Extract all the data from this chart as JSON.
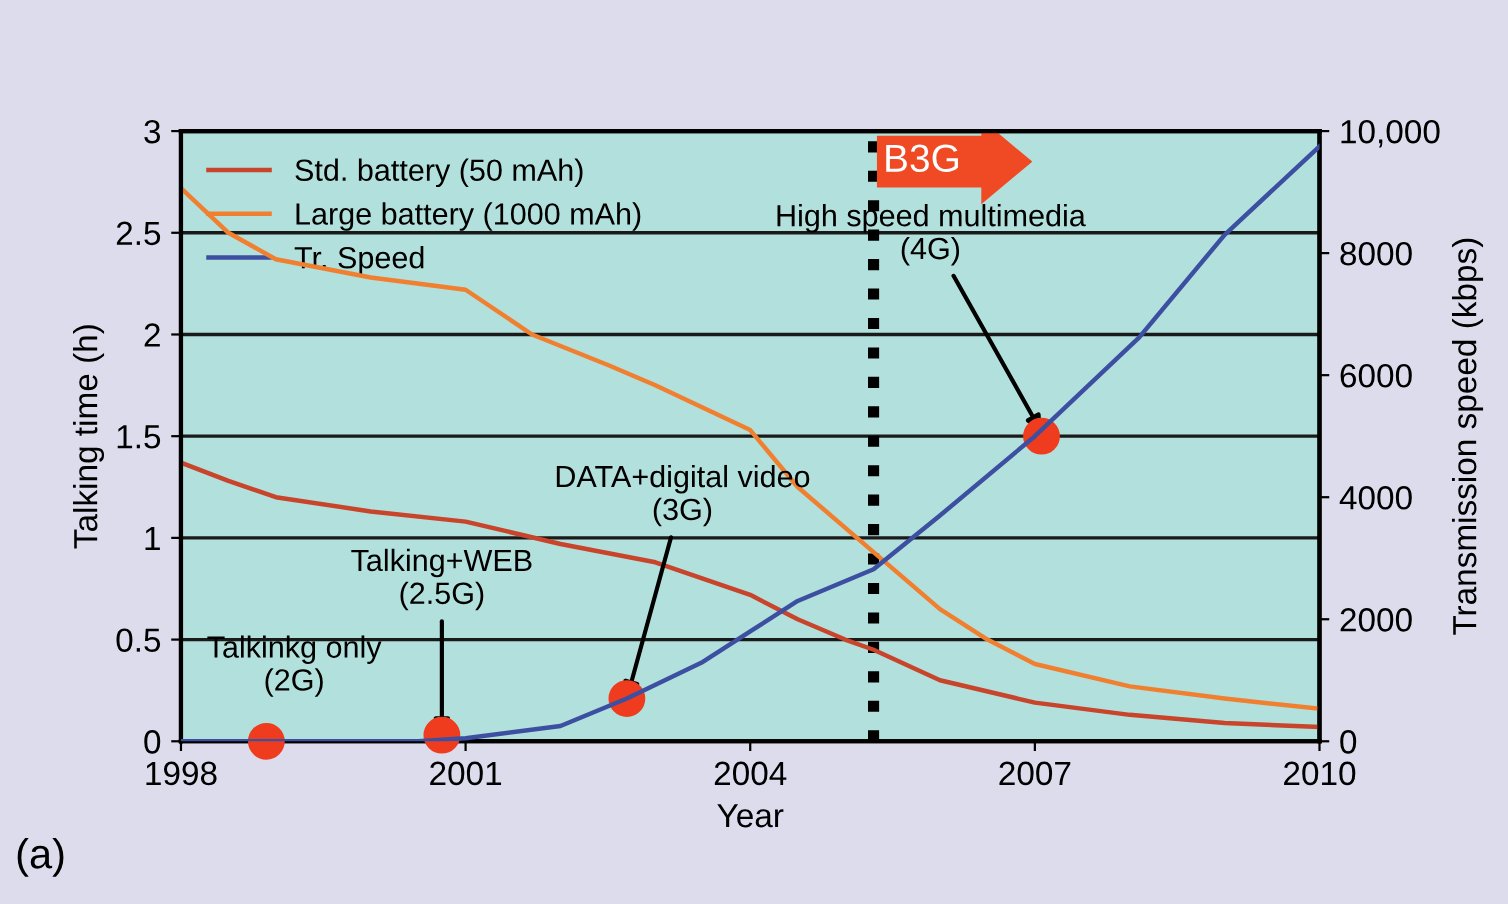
{
  "chart_data": {
    "type": "line",
    "xlabel": "Year",
    "ylabel": "Talking time (h)",
    "y2label": "Transmission speed (kbps)",
    "xlim": [
      1998,
      2010
    ],
    "xticks": [
      1998,
      2001,
      2004,
      2007,
      2010
    ],
    "ylim": [
      0,
      3
    ],
    "yticks": [
      0,
      0.5,
      1,
      1.5,
      2,
      2.5,
      3
    ],
    "y2lim": [
      0,
      10000
    ],
    "y2ticks": [
      0,
      2000,
      4000,
      6000,
      8000,
      {
        "value": 10000,
        "label": "10,000"
      }
    ],
    "grid": "y",
    "legend": "top left",
    "marker": "none",
    "line_style": "solid",
    "series": [
      {
        "name": "Std. battery (50 mAh)",
        "color": "#c8442a",
        "x": [
          1998,
          1998.5,
          1999,
          2000,
          2001,
          2002,
          2003,
          2004,
          2004.5,
          2005,
          2005.3,
          2006,
          2007,
          2008,
          2009,
          2010
        ],
        "values": [
          1.37,
          1.28,
          1.2,
          1.13,
          1.08,
          0.97,
          0.88,
          0.72,
          0.6,
          0.5,
          0.45,
          0.3,
          0.19,
          0.13,
          0.09,
          0.07
        ]
      },
      {
        "name": "Large battery (1000 mAh)",
        "color": "#f08030",
        "x": [
          1998,
          1998.5,
          1999,
          2000,
          2001,
          2001.7,
          2002.5,
          2003,
          2004,
          2004.5,
          2005.3,
          2006,
          2006.5,
          2007,
          2008,
          2009,
          2010
        ],
        "values": [
          2.72,
          2.5,
          2.37,
          2.28,
          2.22,
          2.0,
          1.85,
          1.75,
          1.53,
          1.25,
          0.93,
          0.65,
          0.5,
          0.38,
          0.27,
          0.21,
          0.16
        ]
      },
      {
        "name": "Tr. Speed",
        "color": "#3c4fa0",
        "axis": "y2",
        "x": [
          1998,
          2000.5,
          2001,
          2002,
          2002.7,
          2003.5,
          2004,
          2004.5,
          2005.3,
          2006,
          2007,
          2008.1,
          2009,
          2010
        ],
        "values": [
          0,
          0,
          50,
          250,
          700,
          1300,
          1800,
          2300,
          2820,
          3700,
          5000,
          6620,
          8300,
          9750
        ]
      },
      {
        "type": "scatter",
        "color": "#f03c1e",
        "axis": "y2",
        "marker": "circle",
        "x": [
          1998.9,
          2000.75,
          2002.7,
          2007.07
        ],
        "values": [
          0,
          100,
          700,
          5000
        ]
      }
    ],
    "ref_lines": [
      {
        "axis": "x",
        "value": 2005.3,
        "label": "B3G",
        "color": "#000000",
        "line_style": "dotted"
      }
    ],
    "annotations": [
      {
        "text": "Talkinkg only\n(2G)",
        "x": 1998.9,
        "y": 0
      },
      {
        "text": "Talking+WEB\n(2.5G)",
        "x": 2000.75,
        "y": 0.03
      },
      {
        "text": "DATA+digital video\n(3G)",
        "x": 2002.7,
        "y": 0.21
      },
      {
        "text": "High speed multimedia\n(4G)",
        "x": 2007.07,
        "y": 1.52
      },
      "(a)"
    ]
  }
}
